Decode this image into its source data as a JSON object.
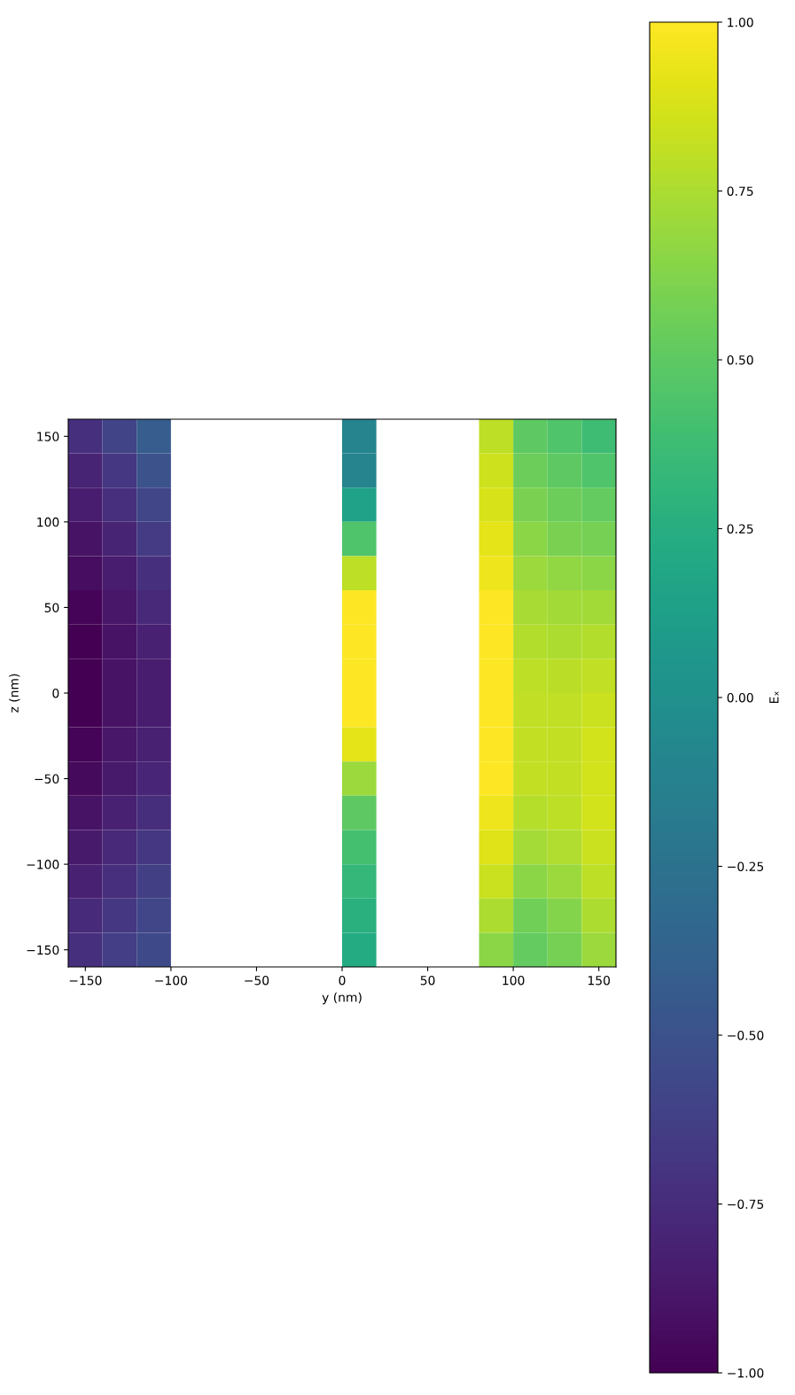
{
  "chart_data": {
    "type": "heatmap",
    "xlabel": "y (nm)",
    "ylabel": "z (nm)",
    "clabel": "Eₓ",
    "x": [
      -150,
      -130,
      -110,
      -90,
      -70,
      -50,
      -30,
      -10,
      10,
      30,
      50,
      70,
      90,
      110,
      130,
      150
    ],
    "y": [
      150,
      130,
      110,
      90,
      70,
      50,
      30,
      10,
      -10,
      -30,
      -50,
      -70,
      -90,
      -110,
      -130,
      -150
    ],
    "cells": [
      [
        -0.72,
        -0.6,
        -0.42,
        null,
        null,
        null,
        null,
        null,
        -0.1,
        null,
        null,
        null,
        0.8,
        0.5,
        0.45,
        0.38
      ],
      [
        -0.8,
        -0.68,
        -0.5,
        null,
        null,
        null,
        null,
        null,
        -0.1,
        null,
        null,
        null,
        0.85,
        0.55,
        0.5,
        0.45
      ],
      [
        -0.85,
        -0.73,
        -0.58,
        null,
        null,
        null,
        null,
        null,
        0.15,
        null,
        null,
        null,
        0.88,
        0.6,
        0.55,
        0.52
      ],
      [
        -0.9,
        -0.8,
        -0.65,
        null,
        null,
        null,
        null,
        null,
        0.45,
        null,
        null,
        null,
        0.92,
        0.65,
        0.6,
        0.58
      ],
      [
        -0.93,
        -0.85,
        -0.72,
        null,
        null,
        null,
        null,
        null,
        0.8,
        null,
        null,
        null,
        0.95,
        0.7,
        0.67,
        0.65
      ],
      [
        -0.98,
        -0.88,
        -0.78,
        null,
        null,
        null,
        null,
        null,
        1.0,
        null,
        null,
        null,
        1.0,
        0.74,
        0.72,
        0.72
      ],
      [
        -1.0,
        -0.9,
        -0.82,
        null,
        null,
        null,
        null,
        null,
        1.0,
        null,
        null,
        null,
        1.0,
        0.77,
        0.75,
        0.77
      ],
      [
        -1.0,
        -0.9,
        -0.84,
        null,
        null,
        null,
        null,
        null,
        1.0,
        null,
        null,
        null,
        1.0,
        0.8,
        0.79,
        0.81
      ],
      [
        -1.0,
        -0.9,
        -0.84,
        null,
        null,
        null,
        null,
        null,
        1.0,
        null,
        null,
        null,
        1.0,
        0.81,
        0.81,
        0.84
      ],
      [
        -0.98,
        -0.88,
        -0.82,
        null,
        null,
        null,
        null,
        null,
        0.92,
        null,
        null,
        null,
        1.0,
        0.82,
        0.82,
        0.86
      ],
      [
        -0.95,
        -0.86,
        -0.79,
        null,
        null,
        null,
        null,
        null,
        0.7,
        null,
        null,
        null,
        1.0,
        0.82,
        0.82,
        0.86
      ],
      [
        -0.9,
        -0.82,
        -0.74,
        null,
        null,
        null,
        null,
        null,
        0.5,
        null,
        null,
        null,
        0.95,
        0.78,
        0.8,
        0.86
      ],
      [
        -0.86,
        -0.78,
        -0.68,
        null,
        null,
        null,
        null,
        null,
        0.4,
        null,
        null,
        null,
        0.9,
        0.73,
        0.76,
        0.84
      ],
      [
        -0.82,
        -0.73,
        -0.63,
        null,
        null,
        null,
        null,
        null,
        0.33,
        null,
        null,
        null,
        0.84,
        0.65,
        0.7,
        0.8
      ],
      [
        -0.76,
        -0.68,
        -0.58,
        null,
        null,
        null,
        null,
        null,
        0.27,
        null,
        null,
        null,
        0.75,
        0.57,
        0.63,
        0.75
      ],
      [
        -0.72,
        -0.64,
        -0.56,
        null,
        null,
        null,
        null,
        null,
        0.22,
        null,
        null,
        null,
        0.65,
        0.52,
        0.58,
        0.7
      ]
    ],
    "xlim": [
      -160,
      160
    ],
    "ylim": [
      -160,
      160
    ],
    "xticks": [
      {
        "value": -150,
        "label": "−150"
      },
      {
        "value": -100,
        "label": "−100"
      },
      {
        "value": -50,
        "label": "−50"
      },
      0,
      50,
      100,
      150
    ],
    "yticks": [
      {
        "value": -150,
        "label": "−150"
      },
      {
        "value": -100,
        "label": "−100"
      },
      {
        "value": -50,
        "label": "−50"
      },
      0,
      50,
      100,
      150
    ],
    "clim": [
      -1,
      1
    ],
    "cticks": [
      {
        "value": -1,
        "label": "−1.00"
      },
      {
        "value": -0.75,
        "label": "−0.75"
      },
      {
        "value": -0.5,
        "label": "−0.50"
      },
      {
        "value": -0.25,
        "label": "−0.25"
      },
      {
        "value": 0,
        "label": "0.00"
      },
      {
        "value": 0.25,
        "label": "0.25"
      },
      {
        "value": 0.5,
        "label": "0.50"
      },
      {
        "value": 0.75,
        "label": "0.75"
      },
      {
        "value": 1,
        "label": "1.00"
      }
    ]
  }
}
